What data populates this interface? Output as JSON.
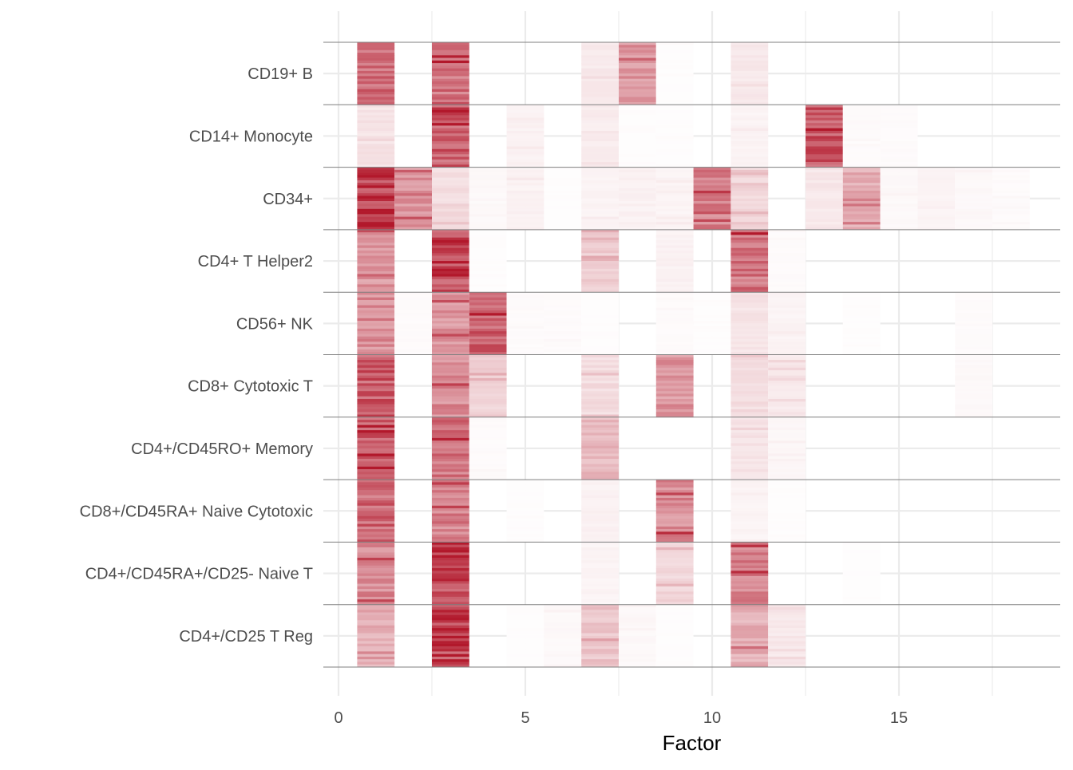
{
  "chart_data": {
    "type": "heatmap",
    "title": "",
    "xlabel": "Factor",
    "ylabel": "",
    "xlim": [
      0,
      19
    ],
    "x_ticks": [
      "0",
      "5",
      "10",
      "15"
    ],
    "x_tick_values": [
      0,
      5,
      10,
      15
    ],
    "grid": true,
    "color_low": "#ffffff",
    "color_high": "#b2182b",
    "cell_types": [
      "CD19+ B",
      "CD14+ Monocyte",
      "CD34+",
      "CD4+ T Helper2",
      "CD56+ NK",
      "CD8+ Cytotoxic T",
      "CD4+/CD45RO+ Memory",
      "CD8+/CD45RA+ Naive Cytotoxic",
      "CD4+/CD45RA+/CD25- Naive T",
      "CD4+/CD25 T Reg"
    ],
    "factors": [
      1,
      2,
      3,
      4,
      5,
      6,
      7,
      8,
      9,
      10,
      11,
      12,
      13,
      14,
      15,
      16,
      17,
      18
    ],
    "mean_loading": [
      [
        0.62,
        0,
        0.62,
        0,
        0,
        0,
        0.1,
        0.45,
        0.01,
        0,
        0.1,
        0,
        0,
        0,
        0,
        0,
        0,
        0
      ],
      [
        0.12,
        0,
        0.72,
        0,
        0.06,
        0,
        0.08,
        0.01,
        0.01,
        0,
        0.05,
        0,
        0.72,
        0.02,
        0.02,
        0,
        0,
        0
      ],
      [
        0.85,
        0.45,
        0.15,
        0.03,
        0.06,
        0.01,
        0.05,
        0.06,
        0.05,
        0.55,
        0.18,
        0,
        0.1,
        0.35,
        0.03,
        0.05,
        0.03,
        0.02
      ],
      [
        0.45,
        0,
        0.78,
        0.01,
        0,
        0,
        0.22,
        0,
        0.06,
        0,
        0.6,
        0.02,
        0,
        0,
        0,
        0,
        0,
        0
      ],
      [
        0.5,
        0.02,
        0.45,
        0.72,
        0.02,
        0.02,
        0.01,
        0,
        0.02,
        0.01,
        0.12,
        0.05,
        0,
        0.01,
        0,
        0,
        0.02,
        0
      ],
      [
        0.7,
        0,
        0.5,
        0.2,
        0,
        0,
        0.15,
        0,
        0.45,
        0,
        0.15,
        0.1,
        0,
        0,
        0,
        0,
        0.03,
        0
      ],
      [
        0.68,
        0,
        0.6,
        0.02,
        0,
        0,
        0.3,
        0,
        0,
        0,
        0.12,
        0.04,
        0,
        0,
        0,
        0,
        0,
        0
      ],
      [
        0.65,
        0,
        0.55,
        0,
        0.01,
        0,
        0.06,
        0,
        0.5,
        0,
        0.05,
        0.01,
        0,
        0,
        0,
        0,
        0,
        0
      ],
      [
        0.5,
        0,
        0.8,
        0,
        0,
        0,
        0.05,
        0,
        0.18,
        0,
        0.55,
        0,
        0,
        0.01,
        0,
        0,
        0,
        0
      ],
      [
        0.35,
        0,
        0.8,
        0,
        0.01,
        0.03,
        0.25,
        0.03,
        0.01,
        0,
        0.35,
        0.1,
        0,
        0,
        0,
        0,
        0,
        0
      ]
    ]
  }
}
